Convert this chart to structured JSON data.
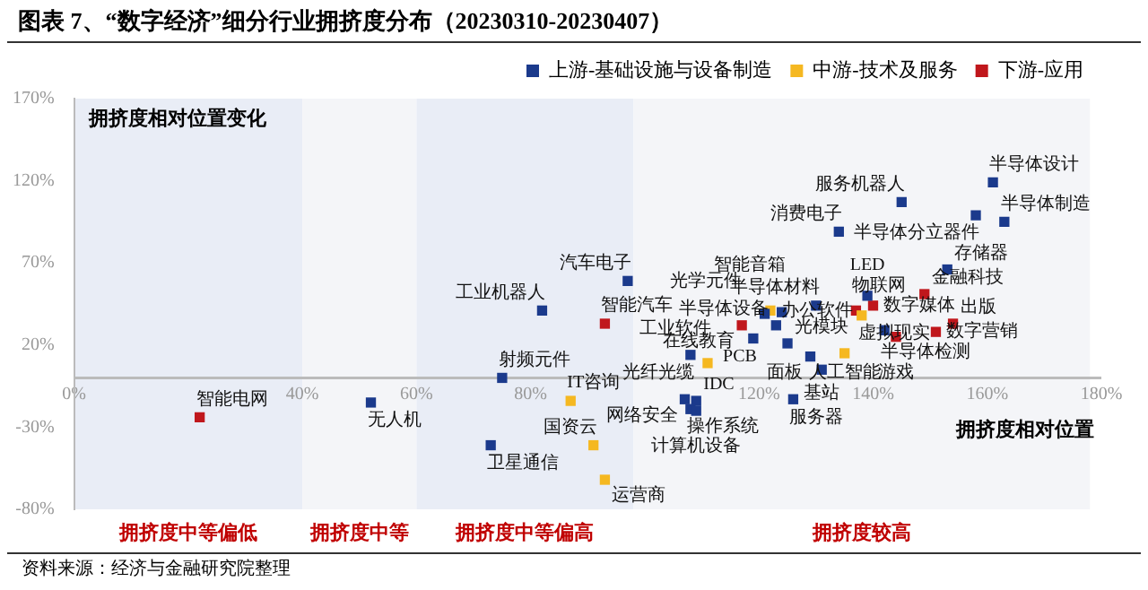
{
  "chart_data": {
    "type": "scatter",
    "title": "图表 7、“数字经济”细分行业拥挤度分布（20230310-20230407）",
    "xlabel": "拥挤度相对位置",
    "ylabel": "拥挤度相对位置变化",
    "xlim": [
      0,
      180
    ],
    "ylim": [
      -80,
      170
    ],
    "xticks": [
      {
        "value": 0,
        "label": "0%"
      },
      {
        "value": 40,
        "label": "40%"
      },
      {
        "value": 60,
        "label": "60%"
      },
      {
        "value": 80,
        "label": "80%"
      },
      {
        "value": 120,
        "label": "120%"
      },
      {
        "value": 140,
        "label": "140%"
      },
      {
        "value": 160,
        "label": "160%"
      },
      {
        "value": 180,
        "label": "180%"
      }
    ],
    "yticks": [
      {
        "value": -80,
        "label": "-80%"
      },
      {
        "value": -30,
        "label": "-30%"
      },
      {
        "value": 20,
        "label": "20%"
      },
      {
        "value": 70,
        "label": "70%"
      },
      {
        "value": 120,
        "label": "120%"
      },
      {
        "value": 170,
        "label": "170%"
      }
    ],
    "grid": false,
    "legend": "top",
    "marker": "square",
    "bands": [
      {
        "axis": "x",
        "from": 0,
        "to": 40,
        "label": "拥挤度中等偏低",
        "color": "#e9edf6"
      },
      {
        "axis": "x",
        "from": 40,
        "to": 60,
        "label": "拥挤度中等",
        "color": "#f4f5f8"
      },
      {
        "axis": "x",
        "from": 60,
        "to": 98,
        "label": "拥挤度中等偏高",
        "color": "#e9edf6"
      },
      {
        "axis": "x",
        "from": 98,
        "to": 178,
        "label": "拥挤度较高",
        "color": "#f4f5f8"
      }
    ],
    "series": [
      {
        "name": "上游-基础设施与设备制造",
        "color": "#1b3a8c",
        "x": [
          52,
          75,
          82,
          73,
          97,
          161,
          145,
          158,
          163,
          134,
          153,
          139,
          130,
          121,
          124,
          123,
          119,
          125,
          129,
          131,
          142,
          108,
          107,
          109,
          108,
          109,
          126
        ],
        "values": [
          -15,
          0,
          41,
          -41,
          59,
          119,
          107,
          99,
          95,
          89,
          66,
          50,
          44,
          39,
          40,
          32,
          24,
          21,
          13,
          5,
          29,
          14,
          -13,
          -14,
          -19,
          -20,
          -13
        ],
        "value_labels": [
          "无人机",
          "射频元件",
          "工业机器人",
          "卫星通信",
          "汽车电子",
          "半导体设计",
          "服务机器人",
          "半导体分立器件",
          "半导体制造",
          "消费电子",
          "存储器",
          "LED",
          "半导体材料",
          "光学元件",
          "智能音箱",
          "半导体设备",
          "PCB",
          "光模块",
          "面板",
          "基站",
          "半导体检测",
          "光纤光缆",
          "网络安全",
          "IDC",
          "操作系统",
          "计算机设备",
          "服务器"
        ]
      },
      {
        "name": "中游-技术及服务",
        "color": "#f5b821",
        "x": [
          87,
          91,
          93,
          122,
          138,
          135,
          111
        ],
        "values": [
          -14,
          -41,
          -62,
          41,
          38,
          15,
          9
        ],
        "value_labels": [
          "IT咨询",
          "国资云",
          "运营商",
          "办公软件",
          "虚拟现实",
          "人工智能",
          "工业软件"
        ]
      },
      {
        "name": "下游-应用",
        "color": "#c0171c",
        "x": [
          22,
          93,
          149,
          137,
          140,
          117,
          144,
          154,
          151
        ],
        "values": [
          -24,
          33,
          51,
          41,
          44,
          32,
          25,
          33,
          28
        ],
        "value_labels": [
          "智能电网",
          "智能汽车",
          "金融科技",
          "物联网",
          "数字媒体",
          "在线教育",
          "游戏",
          "出版",
          "数字营销"
        ]
      }
    ],
    "annotations": [
      "资料来源：经济与金融研究院整理"
    ]
  }
}
